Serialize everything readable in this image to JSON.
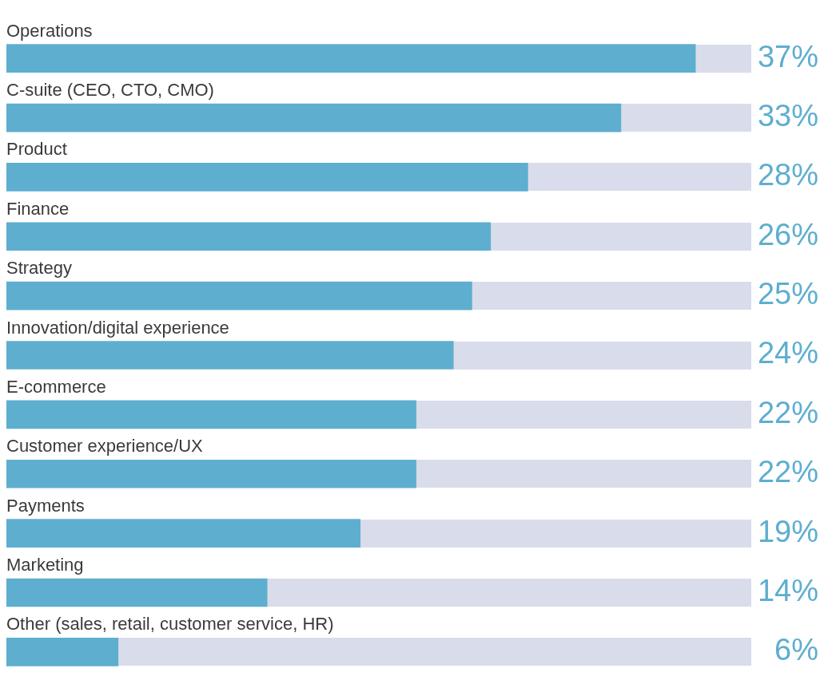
{
  "chart_data": {
    "type": "bar",
    "orientation": "horizontal",
    "categories": [
      "Operations",
      "C-suite (CEO, CTO, CMO)",
      "Product",
      "Finance",
      "Strategy",
      "Innovation/digital experience",
      "E-commerce",
      "Customer experience/UX",
      "Payments",
      "Marketing",
      "Other (sales, retail, customer service, HR)"
    ],
    "values": [
      37,
      33,
      28,
      26,
      25,
      24,
      22,
      22,
      19,
      14,
      6
    ],
    "value_labels": [
      "37%",
      "33%",
      "28%",
      "26%",
      "25%",
      "24%",
      "22%",
      "22%",
      "19%",
      "14%",
      "6%"
    ],
    "color": "#5eaecf"
  }
}
